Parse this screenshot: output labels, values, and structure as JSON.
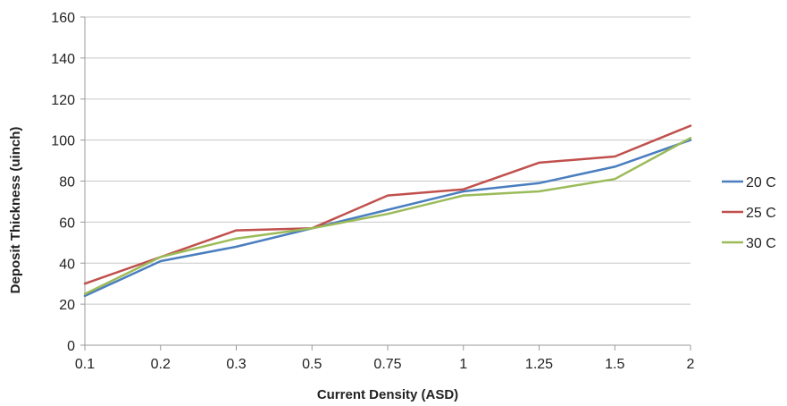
{
  "chart_data": {
    "type": "line",
    "xlabel": "Current Density (ASD)",
    "ylabel": "Deposit Thickness (uinch)",
    "categories": [
      "0.1",
      "0.2",
      "0.3",
      "0.5",
      "0.75",
      "1",
      "1.25",
      "1.5",
      "2"
    ],
    "ylim": [
      0,
      160
    ],
    "yticks": [
      0,
      20,
      40,
      60,
      80,
      100,
      120,
      140,
      160
    ],
    "grid": true,
    "legend_position": "right",
    "series": [
      {
        "name": "20 C",
        "color": "#4a7ebf",
        "values": [
          24,
          41,
          48,
          57,
          66,
          75,
          79,
          87,
          100
        ]
      },
      {
        "name": "25 C",
        "color": "#c0504d",
        "values": [
          30,
          43,
          56,
          57,
          73,
          76,
          89,
          92,
          107
        ]
      },
      {
        "name": "30 C",
        "color": "#9bbb59",
        "values": [
          25,
          43,
          52,
          57,
          64,
          73,
          75,
          81,
          101
        ]
      }
    ]
  }
}
